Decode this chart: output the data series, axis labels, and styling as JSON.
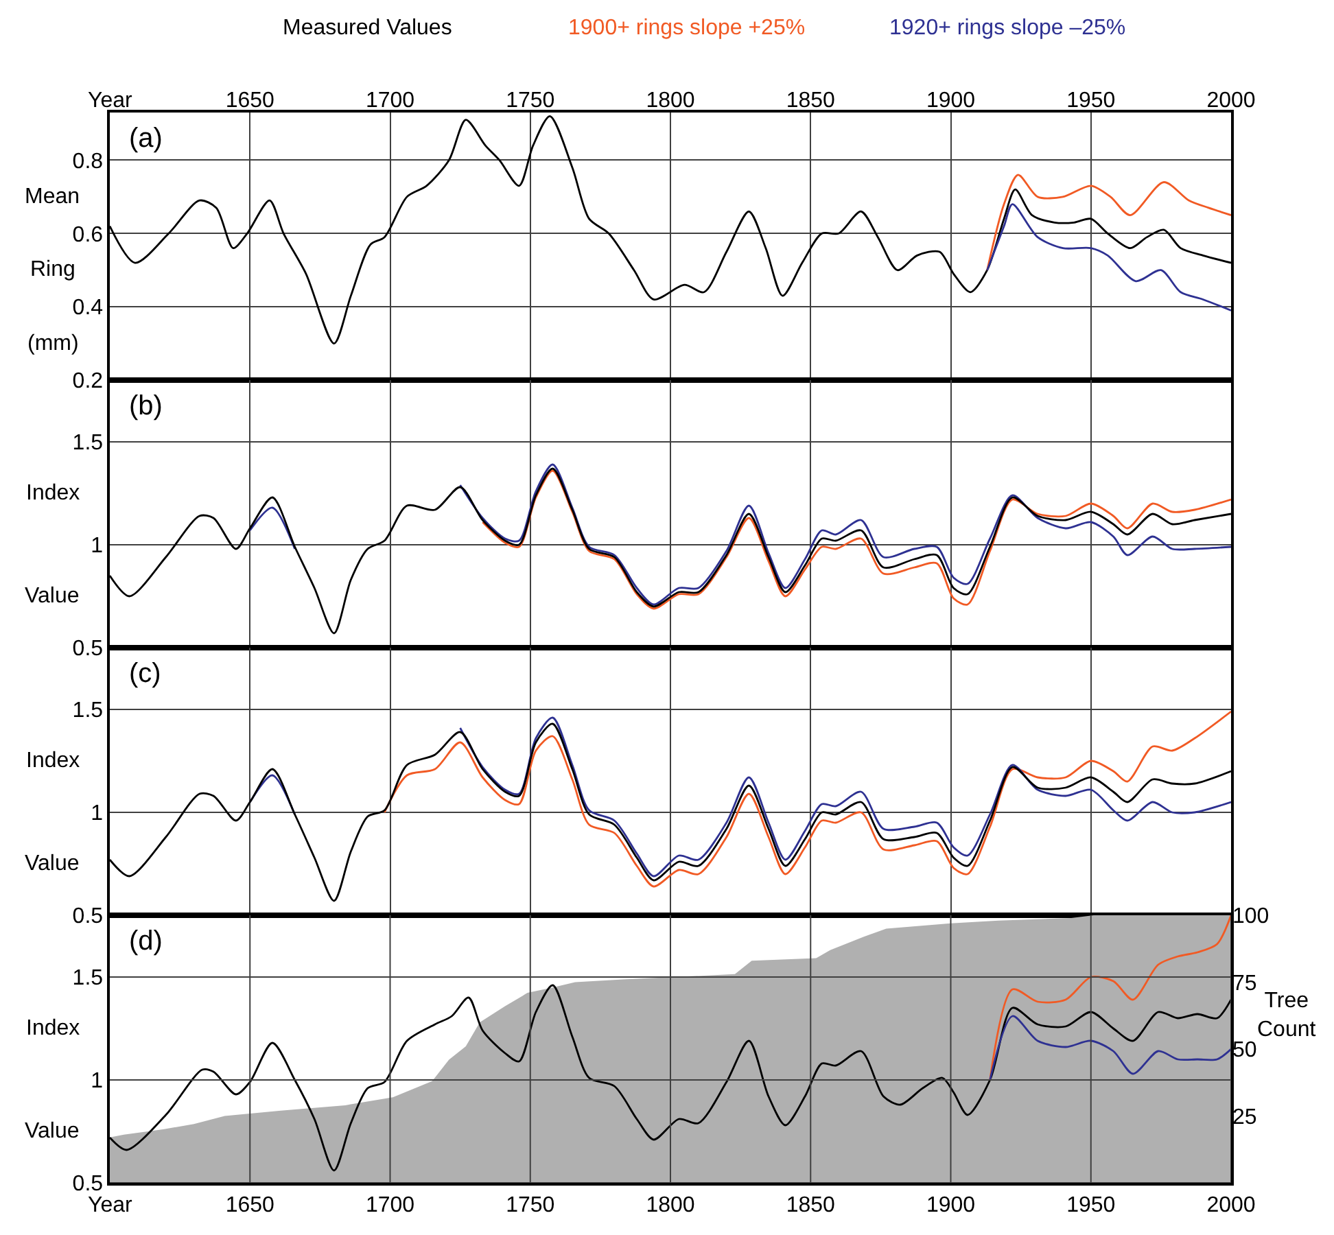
{
  "chart_data": [
    {
      "type": "line",
      "annotations": [
        "(a)"
      ],
      "ylabel": "Mean Ring (mm)",
      "x2label": "Year",
      "legend": "top",
      "grid": true,
      "tick_labels": "y",
      "xlim": [
        1600,
        2000
      ],
      "xticks": [
        1650,
        1700,
        1750,
        1800,
        1850,
        1900,
        1950,
        2000
      ],
      "x2lim": [
        1600,
        2000
      ],
      "x2ticks": [
        1650,
        1700,
        1750,
        1800,
        1850,
        1900,
        1950,
        2000
      ],
      "ylim": [
        0.2,
        0.93
      ],
      "yticks": [
        0.2,
        0.4,
        0.6,
        0.8
      ],
      "series": [
        {
          "name": "Measured Values",
          "color": "#000000",
          "x": [
            1600,
            1609,
            1621,
            1632,
            1638,
            1644,
            1649,
            1657,
            1662,
            1670,
            1680,
            1686,
            1693,
            1698,
            1706,
            1713,
            1721,
            1727,
            1734,
            1739,
            1746,
            1751,
            1757,
            1765,
            1771,
            1778,
            1787,
            1794,
            1805,
            1812,
            1820,
            1828,
            1834,
            1840,
            1847,
            1854,
            1860,
            1868,
            1874,
            1881,
            1888,
            1896,
            1901,
            1907,
            1913,
            1919,
            1923,
            1929,
            1937,
            1944,
            1950,
            1956,
            1964,
            1970,
            1976,
            1982,
            1990,
            2000
          ],
          "values": [
            0.62,
            0.52,
            0.6,
            0.69,
            0.67,
            0.56,
            0.6,
            0.69,
            0.6,
            0.49,
            0.3,
            0.43,
            0.57,
            0.59,
            0.7,
            0.73,
            0.8,
            0.91,
            0.84,
            0.8,
            0.73,
            0.84,
            0.92,
            0.78,
            0.64,
            0.6,
            0.5,
            0.42,
            0.46,
            0.44,
            0.55,
            0.66,
            0.56,
            0.43,
            0.52,
            0.6,
            0.6,
            0.66,
            0.59,
            0.5,
            0.54,
            0.55,
            0.49,
            0.44,
            0.5,
            0.64,
            0.72,
            0.65,
            0.63,
            0.63,
            0.64,
            0.6,
            0.56,
            0.59,
            0.61,
            0.56,
            0.54,
            0.52
          ]
        },
        {
          "name": "1900+ rings slope +25%",
          "color": "#f15a24",
          "x": [
            1913,
            1919,
            1924,
            1931,
            1940,
            1950,
            1957,
            1964,
            1976,
            1985,
            1992,
            2000
          ],
          "values": [
            0.5,
            0.68,
            0.76,
            0.7,
            0.7,
            0.73,
            0.7,
            0.65,
            0.74,
            0.69,
            0.67,
            0.65
          ]
        },
        {
          "name": "1920+ rings slope –25%",
          "color": "#2e3192",
          "x": [
            1913,
            1919,
            1922,
            1931,
            1940,
            1950,
            1956,
            1966,
            1975,
            1982,
            1990,
            2000
          ],
          "values": [
            0.5,
            0.62,
            0.68,
            0.59,
            0.56,
            0.56,
            0.54,
            0.47,
            0.5,
            0.44,
            0.42,
            0.39
          ]
        }
      ]
    },
    {
      "type": "line",
      "annotations": [
        "(b)"
      ],
      "ylabel": "Index Value",
      "grid": true,
      "tick_labels": "y",
      "xlim": [
        1600,
        2000
      ],
      "xticks": [
        1650,
        1700,
        1750,
        1800,
        1850,
        1900,
        1950,
        2000
      ],
      "ylim": [
        0.5,
        1.8
      ],
      "yticks": [
        0.5,
        1,
        1.5
      ],
      "x": [
        1600,
        1607,
        1620,
        1632,
        1637,
        1645,
        1650,
        1658,
        1666,
        1673,
        1680,
        1686,
        1692,
        1698,
        1706,
        1716,
        1725,
        1733,
        1741,
        1746,
        1752,
        1758,
        1765,
        1771,
        1780,
        1788,
        1794,
        1803,
        1810,
        1820,
        1828,
        1835,
        1841,
        1848,
        1854,
        1859,
        1868,
        1876,
        1887,
        1895,
        1901,
        1906,
        1914,
        1922,
        1931,
        1941,
        1950,
        1958,
        1963,
        1972,
        1979,
        1987,
        2000
      ],
      "series": [
        {
          "color": "#f15a24",
          "values": [
            null,
            null,
            null,
            null,
            null,
            null,
            null,
            null,
            null,
            null,
            null,
            null,
            null,
            null,
            null,
            null,
            null,
            1.11,
            1.01,
            0.99,
            1.23,
            1.36,
            1.16,
            0.97,
            0.93,
            0.76,
            0.69,
            0.76,
            0.76,
            0.94,
            1.13,
            0.92,
            0.75,
            0.88,
            0.99,
            0.98,
            1.03,
            0.86,
            0.89,
            0.91,
            0.74,
            0.71,
            0.97,
            1.22,
            1.15,
            1.14,
            1.2,
            1.14,
            1.08,
            1.2,
            1.16,
            1.17,
            1.22
          ]
        },
        {
          "color": "#2e3192",
          "values": [
            null,
            null,
            null,
            null,
            null,
            null,
            1.07,
            1.18,
            0.98,
            null,
            null,
            null,
            null,
            null,
            null,
            null,
            1.29,
            1.13,
            1.03,
            1.02,
            1.26,
            1.39,
            1.18,
            0.99,
            0.95,
            0.79,
            0.71,
            0.79,
            0.79,
            0.97,
            1.19,
            0.96,
            0.79,
            0.93,
            1.07,
            1.05,
            1.12,
            0.94,
            0.98,
            0.99,
            0.84,
            0.81,
            1.03,
            1.24,
            1.13,
            1.08,
            1.11,
            1.04,
            0.95,
            1.04,
            0.98,
            0.98,
            0.99
          ]
        },
        {
          "color": "#000000",
          "values": [
            0.85,
            0.75,
            0.94,
            1.14,
            1.13,
            0.98,
            1.08,
            1.23,
            0.99,
            0.79,
            0.57,
            0.83,
            0.98,
            1.02,
            1.19,
            1.17,
            1.28,
            1.12,
            1.02,
            1.0,
            1.24,
            1.37,
            1.17,
            0.98,
            0.94,
            0.77,
            0.7,
            0.77,
            0.77,
            0.95,
            1.15,
            0.94,
            0.77,
            0.9,
            1.03,
            1.02,
            1.07,
            0.89,
            0.93,
            0.95,
            0.79,
            0.76,
            0.99,
            1.23,
            1.14,
            1.12,
            1.16,
            1.1,
            1.05,
            1.15,
            1.1,
            1.12,
            1.15
          ]
        }
      ]
    },
    {
      "type": "line",
      "annotations": [
        "(c)"
      ],
      "ylabel": "Index Value",
      "grid": true,
      "tick_labels": "y",
      "xlim": [
        1600,
        2000
      ],
      "xticks": [
        1650,
        1700,
        1750,
        1800,
        1850,
        1900,
        1950,
        2000
      ],
      "ylim": [
        0.5,
        1.8
      ],
      "yticks": [
        0.5,
        1,
        1.5
      ],
      "x": [
        1600,
        1607,
        1620,
        1632,
        1637,
        1645,
        1650,
        1658,
        1666,
        1673,
        1680,
        1686,
        1692,
        1698,
        1706,
        1716,
        1725,
        1733,
        1741,
        1746,
        1752,
        1758,
        1765,
        1771,
        1780,
        1788,
        1794,
        1803,
        1810,
        1820,
        1828,
        1835,
        1841,
        1848,
        1854,
        1859,
        1868,
        1876,
        1887,
        1895,
        1901,
        1906,
        1914,
        1922,
        1931,
        1941,
        1950,
        1958,
        1963,
        1972,
        1979,
        1987,
        2000
      ],
      "series": [
        {
          "color": "#f15a24",
          "values": [
            null,
            null,
            null,
            null,
            null,
            null,
            null,
            null,
            null,
            null,
            null,
            null,
            null,
            1.0,
            1.18,
            1.21,
            1.34,
            1.17,
            1.06,
            1.04,
            1.3,
            1.37,
            1.16,
            0.94,
            0.9,
            0.74,
            0.64,
            0.72,
            0.7,
            0.88,
            1.09,
            0.88,
            0.7,
            0.83,
            0.96,
            0.95,
            1.0,
            0.82,
            0.84,
            0.86,
            0.73,
            0.7,
            0.93,
            1.21,
            1.17,
            1.17,
            1.25,
            1.2,
            1.15,
            1.32,
            1.3,
            1.36,
            1.49
          ]
        },
        {
          "color": "#2e3192",
          "values": [
            null,
            null,
            null,
            null,
            null,
            null,
            1.05,
            1.18,
            0.99,
            null,
            null,
            null,
            null,
            null,
            null,
            null,
            1.41,
            1.22,
            1.11,
            1.09,
            1.36,
            1.46,
            1.23,
            1.01,
            0.96,
            0.8,
            0.69,
            0.79,
            0.77,
            0.95,
            1.17,
            0.95,
            0.77,
            0.91,
            1.04,
            1.03,
            1.1,
            0.92,
            0.93,
            0.95,
            0.83,
            0.79,
            0.99,
            1.23,
            1.11,
            1.08,
            1.11,
            1.01,
            0.96,
            1.05,
            1.0,
            1.0,
            1.05
          ]
        },
        {
          "color": "#000000",
          "values": [
            0.77,
            0.69,
            0.88,
            1.09,
            1.08,
            0.96,
            1.05,
            1.21,
            0.99,
            0.78,
            0.57,
            0.81,
            0.98,
            1.01,
            1.23,
            1.28,
            1.39,
            1.21,
            1.1,
            1.08,
            1.34,
            1.43,
            1.21,
            0.99,
            0.94,
            0.78,
            0.67,
            0.76,
            0.74,
            0.92,
            1.13,
            0.92,
            0.74,
            0.87,
            1.0,
            0.99,
            1.05,
            0.87,
            0.88,
            0.9,
            0.78,
            0.74,
            0.96,
            1.22,
            1.12,
            1.12,
            1.17,
            1.1,
            1.05,
            1.16,
            1.14,
            1.14,
            1.2
          ]
        }
      ]
    },
    {
      "type": "line",
      "annotations": [
        "(d)"
      ],
      "ylabel": "Index Value",
      "xlabel": "Year",
      "y2label": "Tree Count",
      "grid": true,
      "xlim": [
        1600,
        2000
      ],
      "xticks": [
        1650,
        1700,
        1750,
        1800,
        1850,
        1900,
        1950,
        2000
      ],
      "ylim": [
        0.5,
        1.8
      ],
      "yticks": [
        0.5,
        1,
        1.5
      ],
      "y2lim": [
        0,
        100
      ],
      "y2ticks": [
        25,
        50,
        75,
        100
      ],
      "series": [
        {
          "type": "area",
          "axis": "y2",
          "color": "#b0b0b0",
          "x": [
            1600,
            1605,
            1619,
            1630,
            1641,
            1661,
            1684,
            1701,
            1715,
            1721,
            1727,
            1732,
            1741,
            1749,
            1758,
            1766,
            1783,
            1823,
            1829,
            1852,
            1857,
            1869,
            1877,
            1900,
            1917,
            1943,
            1951,
            2000
          ],
          "values": [
            17,
            18,
            20,
            22,
            25,
            27,
            29,
            32,
            38,
            46,
            51,
            60,
            66,
            71,
            73,
            75,
            76,
            78,
            83,
            84,
            87,
            92,
            95,
            97,
            98,
            99,
            100,
            100
          ]
        },
        {
          "color": "#000000",
          "x": [
            1600,
            1606,
            1620,
            1633,
            1637,
            1645,
            1650,
            1658,
            1666,
            1673,
            1680,
            1686,
            1692,
            1698,
            1706,
            1716,
            1722,
            1728,
            1733,
            1741,
            1746,
            1752,
            1758,
            1765,
            1771,
            1780,
            1788,
            1794,
            1803,
            1810,
            1820,
            1828,
            1835,
            1841,
            1848,
            1854,
            1859,
            1868,
            1876,
            1882,
            1890,
            1897,
            1901,
            1906,
            1914,
            1922,
            1931,
            1941,
            1950,
            1958,
            1965,
            1974,
            1981,
            1988,
            1995,
            2000
          ],
          "values": [
            0.72,
            0.66,
            0.83,
            1.05,
            1.04,
            0.93,
            0.99,
            1.18,
            1.0,
            0.81,
            0.56,
            0.79,
            0.96,
            0.99,
            1.19,
            1.27,
            1.31,
            1.4,
            1.24,
            1.13,
            1.09,
            1.33,
            1.46,
            1.21,
            1.01,
            0.97,
            0.81,
            0.71,
            0.81,
            0.79,
            0.99,
            1.19,
            0.92,
            0.78,
            0.92,
            1.08,
            1.07,
            1.14,
            0.92,
            0.88,
            0.96,
            1.01,
            0.94,
            0.83,
            1.0,
            1.35,
            1.27,
            1.26,
            1.33,
            1.25,
            1.19,
            1.33,
            1.3,
            1.32,
            1.3,
            1.39
          ]
        },
        {
          "color": "#f15a24",
          "x": [
            1914,
            1922,
            1931,
            1941,
            1950,
            1958,
            1965,
            1974,
            1981,
            1988,
            1995,
            2000
          ],
          "values": [
            1.0,
            1.44,
            1.38,
            1.39,
            1.5,
            1.48,
            1.39,
            1.56,
            1.6,
            1.62,
            1.66,
            1.8
          ]
        },
        {
          "color": "#2e3192",
          "x": [
            1914,
            1922,
            1931,
            1941,
            1950,
            1958,
            1965,
            1974,
            1981,
            1988,
            1995,
            2000
          ],
          "values": [
            1.0,
            1.31,
            1.19,
            1.16,
            1.19,
            1.14,
            1.03,
            1.14,
            1.1,
            1.1,
            1.1,
            1.15
          ]
        }
      ]
    }
  ]
}
